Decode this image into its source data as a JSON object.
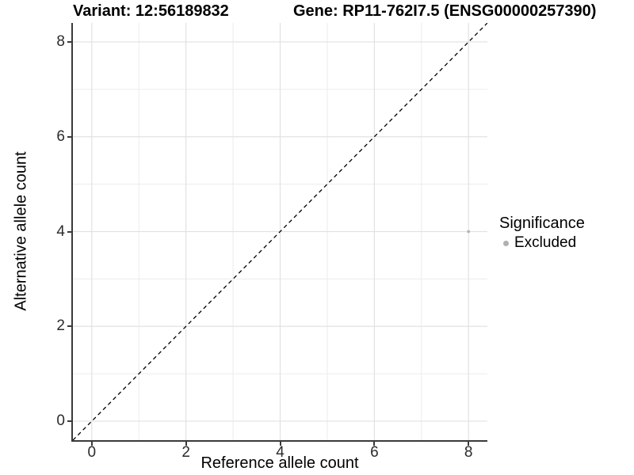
{
  "figure": {
    "title_left": "Variant: 12:56189832",
    "title_right": "Gene: RP11-762I7.5 (ENSG00000257390)"
  },
  "chart_data": {
    "type": "scatter",
    "title": "Variant: 12:56189832 — Gene: RP11-762I7.5 (ENSG00000257390)",
    "xlabel": "Reference allele count",
    "ylabel": "Alternative allele count",
    "xlim": [
      -0.4,
      8.4
    ],
    "ylim": [
      -0.4,
      8.4
    ],
    "xticks": [
      0,
      2,
      4,
      6,
      8
    ],
    "yticks": [
      0,
      2,
      4,
      6,
      8
    ],
    "minor_grid_x": [
      1,
      3,
      5,
      7
    ],
    "minor_grid_y": [
      1,
      3,
      5,
      7
    ],
    "grid": true,
    "series": [
      {
        "name": "Excluded",
        "points": [
          {
            "x": 8,
            "y": 4
          }
        ],
        "color": "#b5b5b5",
        "point_radius": 1.9
      }
    ],
    "reference_line": {
      "kind": "identity",
      "dashed": true,
      "color": "#000000",
      "x1": -0.4,
      "y1": -0.4,
      "x2": 8.4,
      "y2": 8.4
    },
    "legend": {
      "position": "right",
      "title": "Significance",
      "entries": [
        {
          "label": "Excluded",
          "color": "#b0b0b0"
        }
      ]
    }
  },
  "colors": {
    "background": "#ffffff",
    "axis_line": "#3a3a3a",
    "grid_major": "#e2e2e2",
    "grid_minor": "#ececec",
    "tick_text": "#2b2b2b"
  }
}
